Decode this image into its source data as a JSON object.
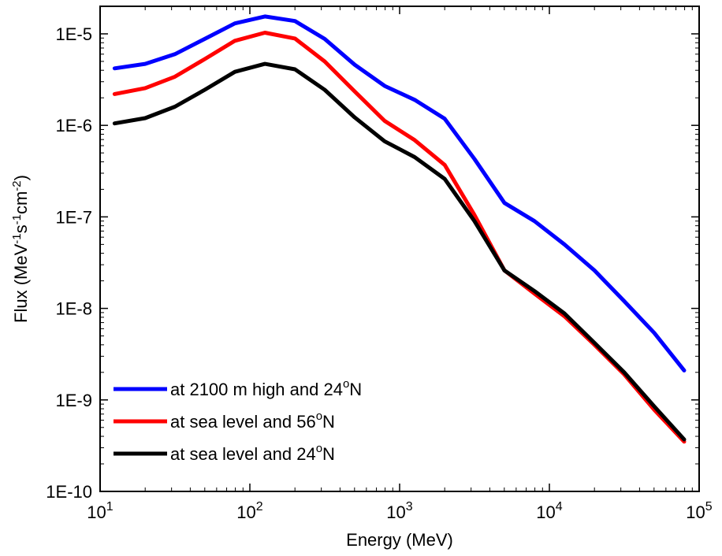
{
  "chart_data": {
    "type": "line",
    "title": "",
    "xlabel": "Energy (MeV)",
    "ylabel": "Flux (MeV-1s-1cm-2)",
    "xscale": "log",
    "yscale": "log",
    "xlim": [
      10,
      100000
    ],
    "ylim": [
      1e-10,
      2e-05
    ],
    "x_ticks": [
      {
        "base": "10",
        "exp": "1"
      },
      {
        "base": "10",
        "exp": "2"
      },
      {
        "base": "10",
        "exp": "3"
      },
      {
        "base": "10",
        "exp": "4"
      },
      {
        "base": "10",
        "exp": "5"
      }
    ],
    "y_ticks": [
      "1E-5",
      "1E-6",
      "1E-7",
      "1E-8",
      "1E-9",
      "1E-10"
    ],
    "legend_position": "bottom-left",
    "grid": false,
    "x": [
      12.5,
      20,
      31.6,
      50,
      79.4,
      126,
      200,
      316,
      501,
      794,
      1260,
      2000,
      3160,
      5010,
      7940,
      12600,
      20000,
      31600,
      50100,
      79400
    ],
    "series": [
      {
        "name": "at 2100 m high and 24oN",
        "legend_parts": [
          "at 2100 m high and 24",
          "o",
          "N"
        ],
        "color": "#0000ff",
        "values": [
          4.2e-06,
          4.7e-06,
          6e-06,
          8.8e-06,
          1.3e-05,
          1.55e-05,
          1.38e-05,
          8.8e-06,
          4.6e-06,
          2.7e-06,
          1.9e-06,
          1.18e-06,
          4.3e-07,
          1.42e-07,
          9e-08,
          5e-08,
          2.6e-08,
          1.2e-08,
          5.4e-09,
          2.1e-09
        ]
      },
      {
        "name": "at sea level and 56oN",
        "legend_parts": [
          "at sea level and 56",
          "o",
          "N"
        ],
        "color": "#ff0000",
        "values": [
          2.2e-06,
          2.55e-06,
          3.4e-06,
          5.3e-06,
          8.4e-06,
          1.03e-05,
          8.9e-06,
          5e-06,
          2.35e-06,
          1.12e-06,
          6.9e-07,
          3.7e-07,
          1.05e-07,
          2.6e-08,
          1.45e-08,
          8.2e-09,
          4e-09,
          1.9e-09,
          7.8e-10,
          3.5e-10
        ]
      },
      {
        "name": "at sea level and 24oN",
        "legend_parts": [
          "at sea level and 24",
          "o",
          "N"
        ],
        "color": "#000000",
        "values": [
          1.05e-06,
          1.2e-06,
          1.6e-06,
          2.45e-06,
          3.85e-06,
          4.7e-06,
          4.1e-06,
          2.45e-06,
          1.22e-06,
          6.7e-07,
          4.5e-07,
          2.6e-07,
          9e-08,
          2.6e-08,
          1.55e-08,
          8.8e-09,
          4.2e-09,
          2e-09,
          8.5e-10,
          3.7e-10
        ]
      }
    ]
  }
}
